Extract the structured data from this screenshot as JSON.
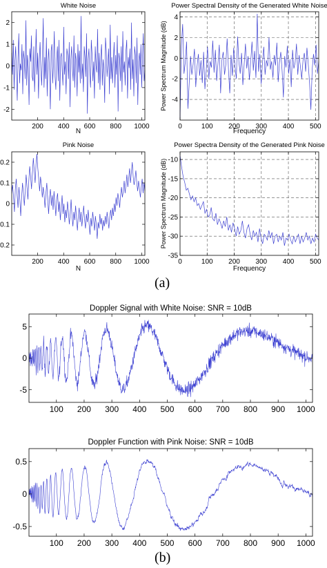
{
  "panel_labels": {
    "a": "(a)",
    "b": "(b)"
  },
  "chart_data": [
    {
      "type": "line",
      "title": "White Noise",
      "xlabel": "N",
      "ylabel": "",
      "xlim": [
        1,
        1024
      ],
      "ylim": [
        -2.5,
        2.5
      ],
      "xticks": [
        200,
        400,
        600,
        800,
        1000
      ],
      "yticks": [
        -2,
        -1,
        0,
        1,
        2
      ],
      "grid": false,
      "series": [
        {
          "color": "#3b3fd1",
          "values": [
            0.6,
            -0.4,
            1.2,
            -1.1,
            0.2,
            0.9,
            -0.3,
            -1.6,
            0.4,
            1.5,
            -0.8,
            0.1,
            -0.2,
            1.0,
            -1.3,
            0.7,
            0.3,
            -0.6,
            2.1,
            -0.9,
            0.5,
            -0.1,
            -1.8,
            0.8,
            0.2,
            1.4,
            -0.5,
            -0.7,
            0.9,
            -1.2,
            0.0,
            1.7,
            -0.4,
            0.6,
            -1.5,
            0.3,
            1.1,
            -0.2,
            -0.9,
            0.5,
            2.2,
            -1.0,
            0.4,
            -0.6,
            1.3,
            -1.4,
            0.2,
            0.8,
            -0.3,
            -2.0,
            0.7,
            1.0,
            -0.8,
            0.1,
            1.6,
            -0.5,
            -1.1,
            0.3,
            0.9,
            -0.7,
            1.2,
            -1.6,
            0.4,
            0.6,
            -0.2,
            -0.9,
            1.8,
            -0.4,
            0.2,
            -1.3,
            0.8,
            0.5,
            -0.6,
            1.1,
            -1.9,
            0.3,
            0.9,
            -0.1,
            -0.7,
            1.4,
            -1.0,
            0.6,
            0.2,
            -1.4,
            1.0,
            -0.3,
            0.7,
            -0.8,
            2.3,
            -0.6,
            0.1,
            -1.2,
            0.9,
            0.4,
            -0.5,
            1.5,
            -2.2,
            0.3,
            0.8,
            -0.4,
            -1.0,
            1.2,
            0.5,
            -0.7,
            0.2,
            -1.5,
            0.9,
            0.0,
            -0.3,
            1.7,
            -0.8,
            0.6,
            -1.1,
            0.4,
            1.0,
            -0.9,
            0.3,
            -0.2,
            -1.7,
            1.3,
            0.7,
            -0.5,
            0.1,
            0.8,
            -1.3,
            1.9,
            -0.6,
            0.4,
            -0.8,
            0.2,
            1.1,
            -1.0,
            0.5,
            -0.4,
            1.4,
            -2.1,
            0.6,
            0.3,
            -0.7,
            0.9,
            -1.2,
            1.6,
            -0.3,
            0.2,
            -0.9,
            0.7,
            1.2,
            -1.5,
            0.4,
            -0.1,
            0.8,
            -1.1,
            2.0,
            -0.6,
            0.3,
            -1.4,
            0.9,
            0.5,
            -0.8,
            1.3,
            -1.8,
            0.2,
            0.6,
            -0.4,
            1.0,
            -1.0,
            0.4,
            1.5,
            -0.7,
            -0.2
          ]
        }
      ]
    },
    {
      "type": "line",
      "title": "Power Spectral Density of the Generated White Noise",
      "xlabel": "Frequency",
      "ylabel": "Power Spectrum Magnitude (dB)",
      "xlim": [
        0,
        512
      ],
      "ylim": [
        -6,
        4.5
      ],
      "xticks": [
        0,
        100,
        200,
        300,
        400,
        500
      ],
      "yticks": [
        -4,
        -2,
        0,
        2,
        4
      ],
      "grid": true,
      "series": [
        {
          "color": "#3b3fd1",
          "values": [
            -5.9,
            1.2,
            3.3,
            -1.5,
            -0.4,
            1.6,
            -4.9,
            -2.4,
            0.2,
            -1.6,
            -0.6,
            0.9,
            -2.8,
            -0.8,
            0.4,
            -1.7,
            -0.2,
            -2.4,
            0.6,
            -3.0,
            -1.2,
            1.1,
            -2.0,
            -0.3,
            -0.9,
            1.7,
            -1.4,
            0.8,
            -2.2,
            -0.5,
            1.3,
            -3.4,
            -0.2,
            0.6,
            -1.6,
            -0.6,
            1.9,
            -1.1,
            -3.4,
            0.3,
            -1.7,
            1.0,
            -0.8,
            -2.0,
            2.1,
            -0.4,
            -1.5,
            0.5,
            -2.6,
            -0.6,
            1.4,
            -1.0,
            0.2,
            -2.1,
            -0.4,
            1.6,
            -1.2,
            0.7,
            -1.9,
            4.3,
            -1.3,
            0.4,
            -2.5,
            -0.5,
            1.1,
            -1.6,
            -0.2,
            -0.8,
            2.0,
            -1.1,
            -0.3,
            -1.9,
            0.3,
            -0.7,
            1.5,
            -2.3,
            -0.4,
            0.6,
            -1.2,
            -3.8,
            0.2,
            -0.9,
            1.2,
            -1.5,
            -0.1,
            -2.8,
            0.8,
            -1.0,
            -0.4,
            1.4,
            -1.6,
            0.3,
            -0.8,
            -2.0,
            -0.2,
            0.5,
            -1.3,
            1.0,
            -0.6,
            -2.4,
            -5.0,
            -1.1,
            0.4,
            -0.7,
            1.3,
            -1.5,
            -0.3
          ]
        }
      ]
    },
    {
      "type": "line",
      "title": "Pink Noise",
      "xlabel": "N",
      "ylabel": "",
      "xlim": [
        1,
        1024
      ],
      "ylim": [
        -0.25,
        0.25
      ],
      "xticks": [
        200,
        400,
        600,
        800,
        1000
      ],
      "yticks": [
        -0.2,
        -0.1,
        0,
        0.1,
        0.2
      ],
      "grid": false,
      "series": [
        {
          "color": "#3b3fd1",
          "values": [
            0.05,
            0.09,
            0.03,
            -0.04,
            0.07,
            0.12,
            0.04,
            -0.02,
            0.08,
            0.02,
            -0.06,
            0.03,
            0.1,
            0.05,
            -0.01,
            0.06,
            0.14,
            0.08,
            0.02,
            0.11,
            0.18,
            0.13,
            0.07,
            0.15,
            0.22,
            0.16,
            0.1,
            0.19,
            0.24,
            0.17,
            0.12,
            0.06,
            0.13,
            0.09,
            0.03,
            0.08,
            0.04,
            -0.02,
            0.05,
            0.1,
            0.02,
            -0.05,
            0.03,
            0.07,
            -0.01,
            0.04,
            -0.03,
            0.06,
            0.0,
            -0.06,
            0.02,
            0.05,
            -0.04,
            0.01,
            -0.08,
            -0.02,
            0.04,
            -0.05,
            0.0,
            -0.09,
            -0.03,
            -0.07,
            0.01,
            -0.04,
            -0.1,
            -0.05,
            0.02,
            -0.06,
            -0.11,
            -0.04,
            -0.08,
            -0.01,
            -0.07,
            -0.13,
            -0.06,
            -0.02,
            -0.09,
            -0.04,
            -0.11,
            -0.06,
            -0.01,
            -0.08,
            -0.12,
            -0.05,
            -0.09,
            -0.03,
            -0.1,
            -0.15,
            -0.07,
            -0.11,
            -0.04,
            -0.08,
            -0.13,
            -0.06,
            -0.1,
            -0.17,
            -0.09,
            -0.12,
            -0.05,
            -0.1,
            -0.07,
            -0.13,
            -0.08,
            -0.11,
            -0.06,
            -0.1,
            -0.04,
            -0.08,
            -0.12,
            -0.06,
            -0.03,
            -0.08,
            -0.02,
            -0.06,
            0.0,
            -0.04,
            0.03,
            -0.01,
            0.05,
            0.02,
            -0.02,
            0.04,
            0.08,
            0.03,
            0.06,
            0.11,
            0.05,
            0.09,
            0.14,
            0.08,
            0.12,
            0.17,
            0.1,
            0.15,
            0.2,
            0.13,
            0.09,
            0.12,
            0.16,
            0.1,
            0.06,
            0.11,
            0.07,
            0.03,
            0.08,
            0.12,
            0.05,
            0.1,
            0.06
          ]
        }
      ]
    },
    {
      "type": "line",
      "title": "Power Spectra Density of the Generated Pink Noise",
      "xlabel": "Frequency",
      "ylabel": "Power Spectrum Magnitude (dB)",
      "xlim": [
        0,
        512
      ],
      "ylim": [
        -35,
        -8
      ],
      "xticks": [
        0,
        100,
        200,
        300,
        400,
        500
      ],
      "yticks": [
        -35,
        -30,
        -25,
        -20,
        -15,
        -10
      ],
      "grid": true,
      "series": [
        {
          "color": "#3b3fd1",
          "values": [
            -9,
            -12,
            -14.5,
            -16,
            -18,
            -17.5,
            -19,
            -20.5,
            -19.5,
            -21,
            -20,
            -22,
            -21.5,
            -23,
            -22,
            -21,
            -24,
            -23,
            -25,
            -24.5,
            -22.5,
            -25.5,
            -26,
            -24,
            -27,
            -25.5,
            -26.5,
            -28,
            -26,
            -27.5,
            -25,
            -28.5,
            -27,
            -29,
            -26.5,
            -28,
            -30,
            -27.5,
            -29.5,
            -28.5,
            -26,
            -29,
            -30.5,
            -28,
            -27,
            -29.5,
            -31,
            -28.5,
            -30,
            -29,
            -31.5,
            -28,
            -30.5,
            -32,
            -29.5,
            -30,
            -31,
            -28.5,
            -30.5,
            -29,
            -32,
            -30,
            -29.5,
            -31.5,
            -30,
            -31,
            -29,
            -32.5,
            -30.5,
            -31,
            -29.5,
            -31,
            -32,
            -30,
            -31.5,
            -30.5,
            -29.5,
            -32,
            -30,
            -31.5,
            -30.5,
            -29,
            -31,
            -30,
            -32,
            -30.5,
            -31.5,
            -29.5,
            -30.5,
            -31
          ]
        }
      ]
    },
    {
      "type": "line",
      "title": "Doppler Signal with White Noise: SNR = 10dB",
      "xlabel": "",
      "ylabel": "",
      "xlim": [
        1,
        1024
      ],
      "ylim": [
        -7,
        7
      ],
      "xticks": [
        100,
        200,
        300,
        400,
        500,
        600,
        700,
        800,
        900,
        1000
      ],
      "yticks": [
        -5,
        0,
        5
      ],
      "grid": false,
      "series": [
        {
          "color": "#3b3fd1",
          "generator": "doppler",
          "noise": "white",
          "amplitude": 5.2
        }
      ]
    },
    {
      "type": "line",
      "title": "Doppler Function with Pink Noise: SNR = 10dB",
      "xlabel": "",
      "ylabel": "",
      "xlim": [
        1,
        1024
      ],
      "ylim": [
        -0.65,
        0.7
      ],
      "xticks": [
        100,
        200,
        300,
        400,
        500,
        600,
        700,
        800,
        900,
        1000
      ],
      "yticks": [
        -0.5,
        0,
        0.5
      ],
      "grid": false,
      "series": [
        {
          "color": "#3b3fd1",
          "generator": "doppler",
          "noise": "pink",
          "amplitude": 0.55
        }
      ]
    }
  ]
}
